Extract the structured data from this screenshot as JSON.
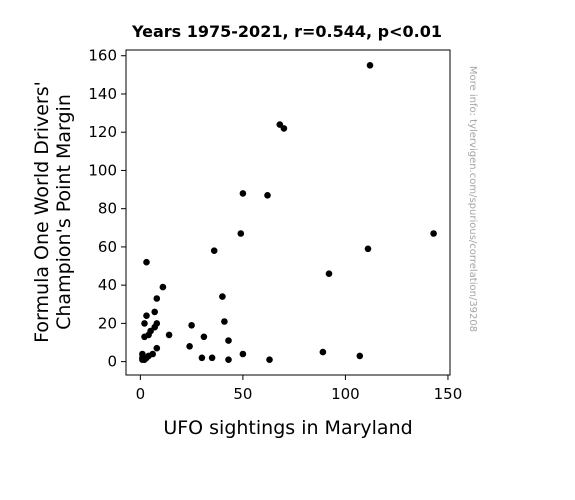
{
  "chart_data": {
    "type": "scatter",
    "title": "Years 1975-2021, r=0.544, p<0.01",
    "xlabel": "UFO sightings in Maryland",
    "ylabel": [
      "Formula One World Drivers'",
      "Champion's Point Margin"
    ],
    "side_note": "More info: tylervigen.com/spurious/correlation/3920​8",
    "xlim": [
      -7,
      151
    ],
    "ylim": [
      -7,
      163
    ],
    "xticks": [
      0,
      50,
      100,
      150
    ],
    "yticks": [
      0,
      20,
      40,
      60,
      80,
      100,
      120,
      140,
      160
    ],
    "grid": false,
    "marker_color": "#000000",
    "points": [
      [
        1,
        2
      ],
      [
        1,
        4
      ],
      [
        2,
        1
      ],
      [
        2,
        13
      ],
      [
        2,
        20
      ],
      [
        3,
        24
      ],
      [
        3,
        52
      ],
      [
        4,
        3
      ],
      [
        4,
        14
      ],
      [
        5,
        16
      ],
      [
        6,
        4
      ],
      [
        7,
        26
      ],
      [
        7,
        18
      ],
      [
        8,
        20
      ],
      [
        8,
        33
      ],
      [
        8,
        7
      ],
      [
        11,
        39
      ],
      [
        14,
        14
      ],
      [
        24,
        8
      ],
      [
        25,
        19
      ],
      [
        30,
        2
      ],
      [
        31,
        13
      ],
      [
        35,
        2
      ],
      [
        36,
        58
      ],
      [
        40,
        34
      ],
      [
        41,
        21
      ],
      [
        43,
        1
      ],
      [
        43,
        11
      ],
      [
        49,
        67
      ],
      [
        50,
        88
      ],
      [
        50,
        4
      ],
      [
        62,
        87
      ],
      [
        63,
        1
      ],
      [
        68,
        124
      ],
      [
        70,
        122
      ],
      [
        89,
        5
      ],
      [
        92,
        46
      ],
      [
        107,
        3
      ],
      [
        111,
        59
      ],
      [
        112,
        155
      ],
      [
        143,
        67
      ],
      [
        1,
        1
      ],
      [
        3,
        2
      ]
    ]
  }
}
